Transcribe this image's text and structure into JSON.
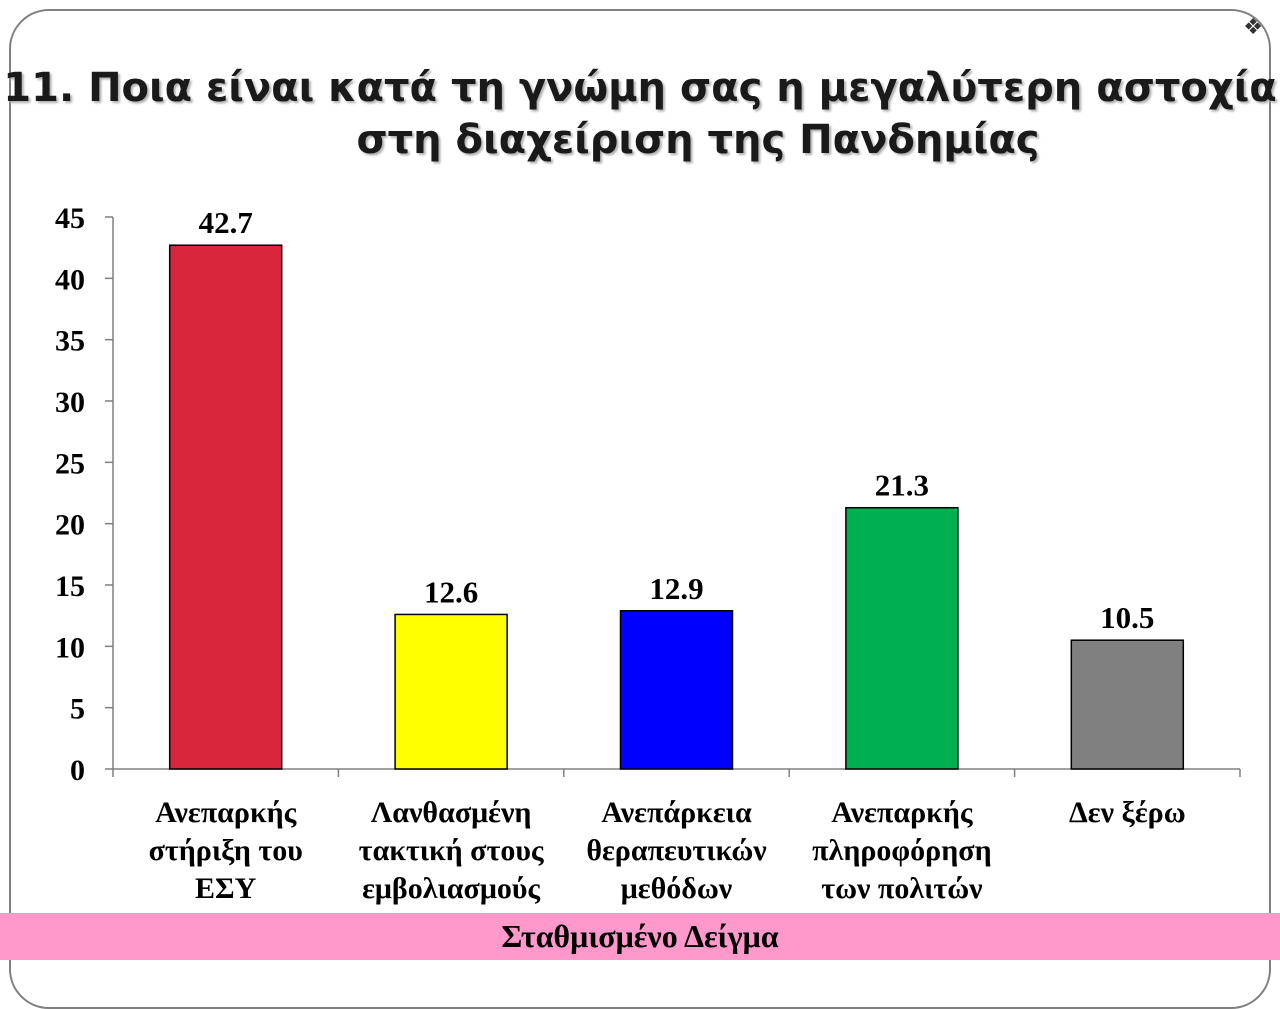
{
  "title_line1": "11. Ποια είναι κατά τη γνώμη σας η μεγαλύτερη αστοχία",
  "title_line2": "στη διαχείριση της Πανδημίας",
  "footer": "Σταθμισμένο Δείγμα",
  "chart_data": {
    "type": "bar",
    "title": "11. Ποια είναι κατά τη γνώμη σας η μεγαλύτερη αστοχία στη διαχείριση της Πανδημίας",
    "categories": [
      [
        "Ανεπαρκής",
        "στήριξη του",
        "ΕΣΥ"
      ],
      [
        "Λανθασμένη",
        "τακτική στους",
        "εμβολιασμούς"
      ],
      [
        "Ανεπάρκεια",
        "θεραπευτικών",
        "μεθόδων"
      ],
      [
        "Ανεπαρκής",
        "πληροφόρηση",
        "των πολιτών"
      ],
      [
        "Δεν ξέρω"
      ]
    ],
    "values": [
      42.7,
      12.6,
      12.9,
      21.3,
      10.5
    ],
    "value_labels": [
      "42.7",
      "12.6",
      "12.9",
      "21.3",
      "10.5"
    ],
    "colors": [
      "#d9263d",
      "#ffff00",
      "#0000ff",
      "#00b050",
      "#808080"
    ],
    "ylim": [
      0,
      45
    ],
    "yticks": [
      0,
      5,
      10,
      15,
      20,
      25,
      30,
      35,
      40,
      45
    ],
    "grid": false,
    "legend": "none"
  }
}
